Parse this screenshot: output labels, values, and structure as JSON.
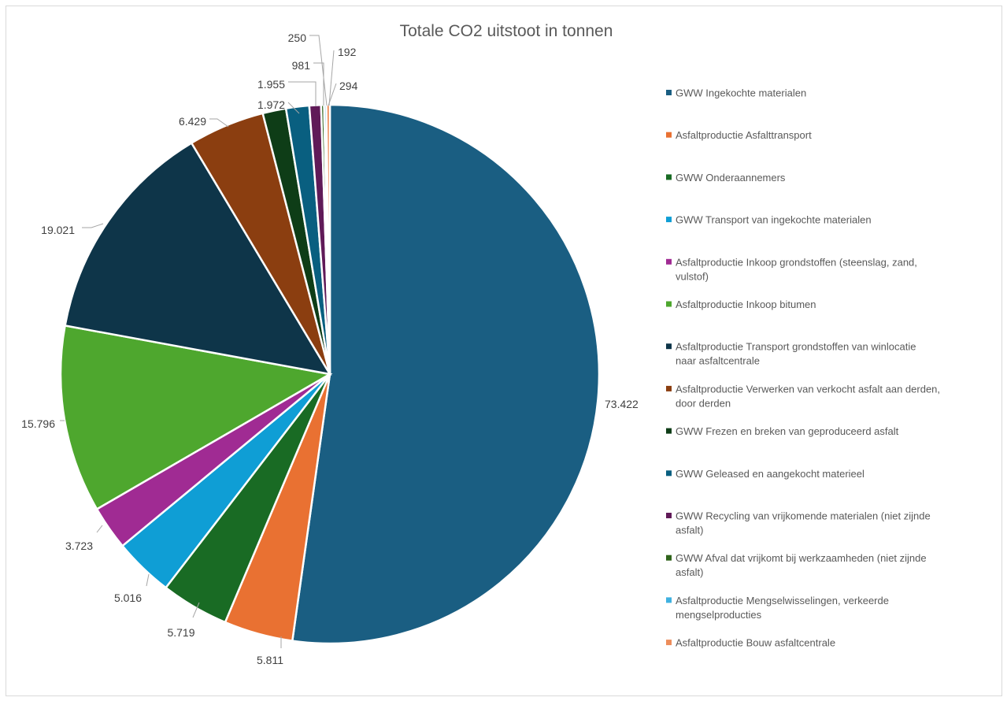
{
  "chart_data": {
    "type": "pie",
    "title": "Totale CO2 uitstoot in tonnen",
    "legend_position": "right",
    "slices": [
      {
        "label": "GWW Ingekochte materialen",
        "value": 73422,
        "display": "73.422",
        "color": "#1a5e82"
      },
      {
        "label": "Asfaltproductie Asfalttransport",
        "value": 5811,
        "display": "5.811",
        "color": "#e97132"
      },
      {
        "label": "GWW Onderaannemers",
        "value": 5719,
        "display": "5.719",
        "color": "#196b24"
      },
      {
        "label": "GWW Transport van ingekochte materialen",
        "value": 5016,
        "display": "5.016",
        "color": "#0f9ed5"
      },
      {
        "label": "Asfaltproductie Inkoop grondstoffen (steenslag, zand, vulstof)",
        "value": 3723,
        "display": "3.723",
        "color": "#a02b93"
      },
      {
        "label": "Asfaltproductie Inkoop bitumen",
        "value": 15796,
        "display": "15.796",
        "color": "#4ea72e"
      },
      {
        "label": "Asfaltproductie Transport grondstoffen van winlocatie naar asfaltcentrale",
        "value": 19021,
        "display": "19.021",
        "color": "#0e3549"
      },
      {
        "label": "Asfaltproductie Verwerken van verkocht asfalt aan derden, door derden",
        "value": 6429,
        "display": "6.429",
        "color": "#8b3e10"
      },
      {
        "label": "GWW Frezen en breken van geproduceerd asfalt",
        "value": 1972,
        "display": "1.972",
        "color": "#0e3d17"
      },
      {
        "label": "GWW Geleased en aangekocht materieel",
        "value": 1955,
        "display": "1.955",
        "color": "#095f80"
      },
      {
        "label": "GWW Recycling van vrijkomende materialen (niet zijnde asfalt)",
        "value": 981,
        "display": "981",
        "color": "#601a58"
      },
      {
        "label": "GWW Afval dat vrijkomt bij werkzaamheden (niet zijnde asfalt)",
        "value": 250,
        "display": "250",
        "color": "#2f641b"
      },
      {
        "label": "Asfaltproductie Mengselwisselingen, verkeerde mengselproducties",
        "value": 192,
        "display": "192",
        "color": "#3fb1e0"
      },
      {
        "label": "Asfaltproductie Bouw asfaltcentrale",
        "value": 294,
        "display": "294",
        "color": "#ed8d5b"
      }
    ]
  }
}
